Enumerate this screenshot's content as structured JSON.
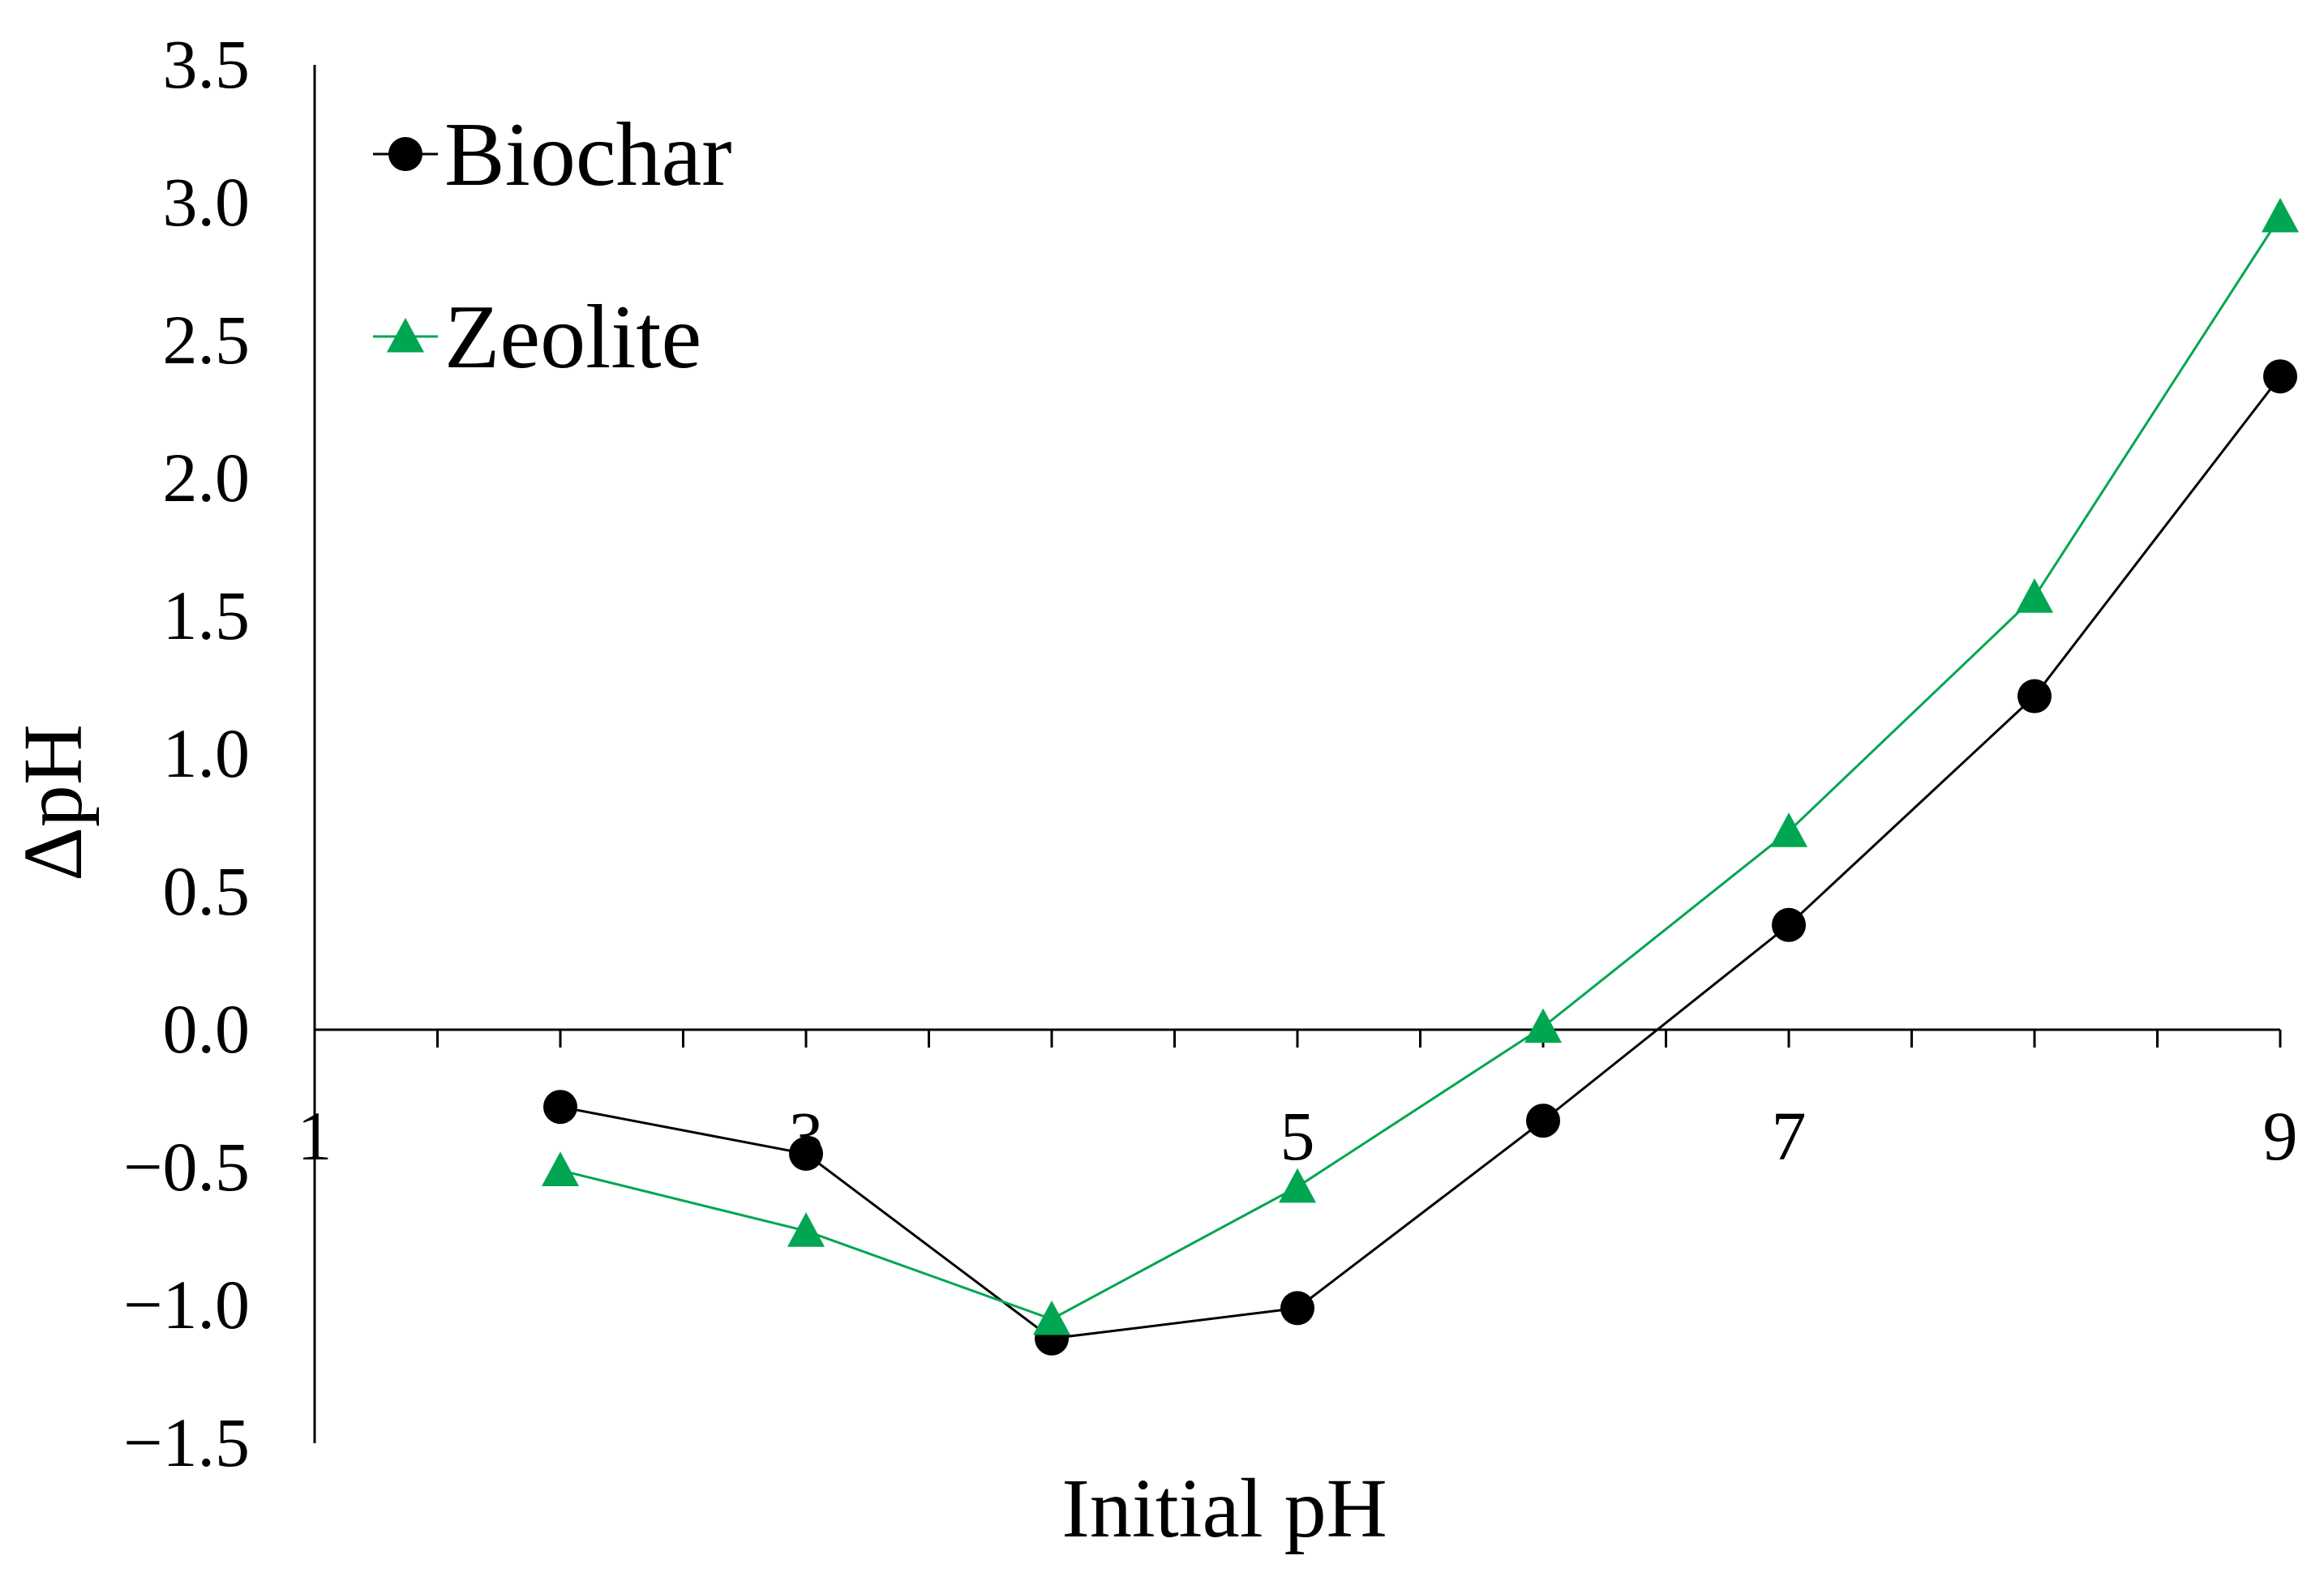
{
  "chart_data": {
    "type": "line",
    "title": "",
    "xlabel": "Initial pH",
    "ylabel": "ΔpH",
    "xlim": [
      1,
      9
    ],
    "ylim": [
      -1.5,
      3.5
    ],
    "x_tick_labels": [
      "1",
      "3",
      "5",
      "7",
      "9"
    ],
    "y_tick_labels": [
      "3.5",
      "3.0",
      "2.5",
      "2.0",
      "1.5",
      "1.0",
      "0.5",
      "0.0",
      "−0.5",
      "−1.0",
      "−1.5"
    ],
    "x_axis_at_y": 0,
    "grid": false,
    "legend_position": "top-left",
    "series": [
      {
        "name": "Biochar",
        "marker": "circle",
        "color": "#000000",
        "x": [
          2,
          3,
          4,
          5,
          6,
          7,
          8,
          9
        ],
        "y": [
          -0.28,
          -0.45,
          -1.12,
          -1.01,
          -0.33,
          0.38,
          1.21,
          2.37
        ]
      },
      {
        "name": "Zeolite",
        "marker": "triangle",
        "color": "#00a651",
        "x": [
          2,
          3,
          4,
          5,
          6,
          7,
          8,
          9
        ],
        "y": [
          -0.51,
          -0.73,
          -1.05,
          -0.57,
          0.01,
          0.72,
          1.57,
          2.95
        ]
      }
    ]
  }
}
